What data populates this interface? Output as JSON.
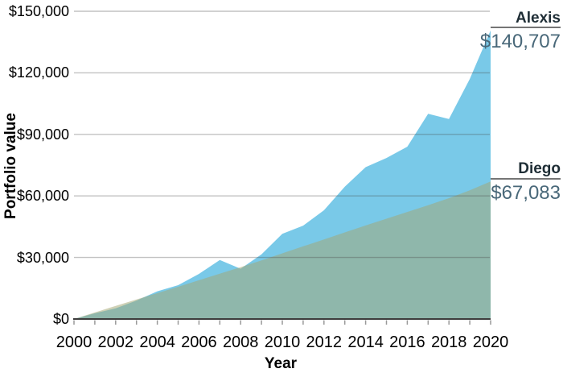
{
  "chart_data": {
    "type": "area",
    "title": "",
    "xlabel": "Year",
    "ylabel": "Portfolio value",
    "xlim": [
      2000,
      2020
    ],
    "ylim": [
      0,
      150000
    ],
    "grid": "horizontal",
    "x": [
      2000,
      2001,
      2002,
      2003,
      2004,
      2005,
      2006,
      2007,
      2008,
      2009,
      2010,
      2011,
      2012,
      2013,
      2014,
      2015,
      2016,
      2017,
      2018,
      2019,
      2020
    ],
    "series": [
      {
        "name": "Alexis",
        "color": "#79C9E8",
        "fill_opacity": 1,
        "final_value": 140707,
        "values": [
          0,
          2800,
          5200,
          9000,
          13500,
          16500,
          22000,
          28800,
          24500,
          31500,
          41500,
          45500,
          53000,
          64500,
          74000,
          78500,
          84000,
          100000,
          97500,
          117000,
          140707
        ]
      },
      {
        "name": "Diego",
        "color": "#A3A773",
        "fill_opacity": 0.52,
        "final_value": 67083,
        "values": [
          0,
          3200,
          6400,
          9500,
          12600,
          15700,
          18900,
          22100,
          25300,
          28600,
          32000,
          35400,
          38800,
          42200,
          45600,
          48900,
          52200,
          55500,
          58900,
          62700,
          67083
        ]
      }
    ],
    "y_ticks": {
      "values": [
        0,
        30000,
        60000,
        90000,
        120000,
        150000
      ],
      "labels": [
        "$0",
        "$30,000",
        "$60,000",
        "$90,000",
        "$120,000",
        "$150,000"
      ]
    },
    "x_tick_labels": [
      "2000",
      "2002",
      "2004",
      "2006",
      "2008",
      "2010",
      "2012",
      "2014",
      "2016",
      "2018",
      "2020"
    ],
    "x_minor_tick_years": [
      2000,
      2001,
      2002,
      2003,
      2004,
      2005,
      2006,
      2007,
      2008,
      2009,
      2010,
      2011,
      2012,
      2013,
      2014,
      2015,
      2016,
      2017,
      2018,
      2019,
      2020
    ],
    "legend_position": "right-annotations",
    "annotations": [
      {
        "series": "Alexis",
        "label": "Alexis",
        "value": "$140,707"
      },
      {
        "series": "Diego",
        "label": "Diego",
        "value": "$67,083"
      }
    ]
  },
  "colors": {
    "alexis_blue": "#79C9E8",
    "diego_khaki_solo": "#D2CFAE",
    "overlap_teal": "#8FB9AE",
    "callout_name_text": "#1F2E36",
    "callout_value_text": "#496879",
    "callout_line": "#757575",
    "gridline": "#C9C9C9",
    "axis_baseline": "#3D3D3D",
    "tick_mark": "#999999",
    "axis_text": "#000000"
  }
}
